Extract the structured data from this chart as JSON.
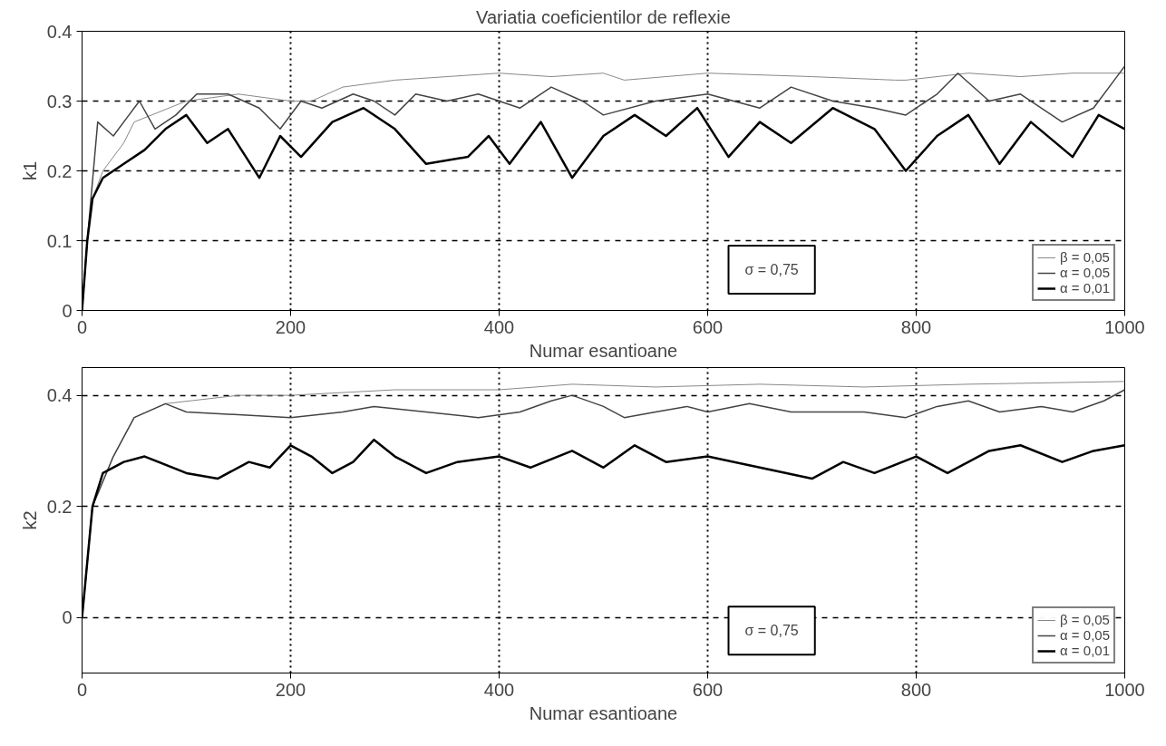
{
  "chart_data": [
    {
      "type": "line",
      "title": "Variatia coeficientilor de reflexie",
      "xlabel": "Numar esantioane",
      "ylabel": "k1",
      "xlim": [
        0,
        1000
      ],
      "xticks": [
        0,
        200,
        400,
        600,
        800,
        1000
      ],
      "ylim": [
        0,
        0.4
      ],
      "yticks": [
        0,
        0.1,
        0.2,
        0.3,
        0.4
      ],
      "grid": true,
      "legend": "bottom right",
      "annotations": [
        "σ = 0,75"
      ],
      "series": [
        {
          "name": "β = 0,05",
          "color": "#888888",
          "x": [
            0,
            5,
            10,
            20,
            40,
            50,
            100,
            150,
            200,
            220,
            250,
            300,
            350,
            400,
            450,
            500,
            520,
            600,
            700,
            780,
            790,
            850,
            900,
            950,
            1000
          ],
          "values": [
            0,
            0.1,
            0.16,
            0.2,
            0.24,
            0.27,
            0.3,
            0.31,
            0.3,
            0.3,
            0.32,
            0.33,
            0.335,
            0.34,
            0.335,
            0.34,
            0.33,
            0.34,
            0.335,
            0.33,
            0.33,
            0.34,
            0.335,
            0.34,
            0.34
          ]
        },
        {
          "name": "α = 0,05",
          "color": "#444444",
          "x": [
            0,
            5,
            15,
            30,
            45,
            55,
            70,
            90,
            110,
            140,
            170,
            190,
            210,
            230,
            260,
            280,
            300,
            320,
            350,
            380,
            420,
            450,
            480,
            500,
            550,
            600,
            650,
            680,
            720,
            760,
            790,
            820,
            840,
            870,
            900,
            940,
            970,
            990,
            1000
          ],
          "values": [
            0,
            0.1,
            0.27,
            0.25,
            0.28,
            0.3,
            0.26,
            0.28,
            0.31,
            0.31,
            0.29,
            0.26,
            0.3,
            0.29,
            0.31,
            0.3,
            0.28,
            0.31,
            0.3,
            0.31,
            0.29,
            0.32,
            0.3,
            0.28,
            0.3,
            0.31,
            0.29,
            0.32,
            0.3,
            0.29,
            0.28,
            0.31,
            0.34,
            0.3,
            0.31,
            0.27,
            0.29,
            0.33,
            0.35
          ]
        },
        {
          "name": "α = 0,01",
          "color": "#000000",
          "x": [
            0,
            5,
            10,
            20,
            40,
            60,
            80,
            100,
            120,
            140,
            170,
            190,
            210,
            240,
            270,
            300,
            330,
            370,
            390,
            410,
            440,
            470,
            500,
            530,
            560,
            590,
            620,
            650,
            680,
            720,
            760,
            790,
            820,
            850,
            880,
            910,
            950,
            975,
            1000
          ],
          "values": [
            0,
            0.1,
            0.16,
            0.19,
            0.21,
            0.23,
            0.26,
            0.28,
            0.24,
            0.26,
            0.19,
            0.25,
            0.22,
            0.27,
            0.29,
            0.26,
            0.21,
            0.22,
            0.25,
            0.21,
            0.27,
            0.19,
            0.25,
            0.28,
            0.25,
            0.29,
            0.22,
            0.27,
            0.24,
            0.29,
            0.26,
            0.2,
            0.25,
            0.28,
            0.21,
            0.27,
            0.22,
            0.28,
            0.26
          ]
        }
      ]
    },
    {
      "type": "line",
      "xlabel": "Numar esantioane",
      "ylabel": "k2",
      "xlim": [
        0,
        1000
      ],
      "xticks": [
        0,
        200,
        400,
        600,
        800,
        1000
      ],
      "ylim": [
        -0.1,
        0.45
      ],
      "yticks": [
        0,
        0.2,
        0.4
      ],
      "grid": true,
      "legend": "bottom right",
      "annotations": [
        "σ = 0,75"
      ],
      "series": [
        {
          "name": "β = 0,05",
          "color": "#888888",
          "x": [
            0,
            10,
            30,
            50,
            80,
            150,
            200,
            300,
            400,
            470,
            550,
            650,
            750,
            850,
            1000
          ],
          "values": [
            0,
            0.2,
            0.29,
            0.36,
            0.385,
            0.4,
            0.4,
            0.41,
            0.41,
            0.42,
            0.415,
            0.42,
            0.415,
            0.42,
            0.425
          ]
        },
        {
          "name": "α = 0,05",
          "color": "#444444",
          "x": [
            0,
            10,
            30,
            50,
            80,
            100,
            150,
            200,
            250,
            280,
            330,
            380,
            420,
            450,
            470,
            500,
            520,
            550,
            580,
            600,
            640,
            680,
            750,
            790,
            820,
            850,
            880,
            920,
            950,
            980,
            1000
          ],
          "values": [
            0,
            0.2,
            0.29,
            0.36,
            0.385,
            0.37,
            0.365,
            0.36,
            0.37,
            0.38,
            0.37,
            0.36,
            0.37,
            0.39,
            0.4,
            0.38,
            0.36,
            0.37,
            0.38,
            0.37,
            0.385,
            0.37,
            0.37,
            0.36,
            0.38,
            0.39,
            0.37,
            0.38,
            0.37,
            0.39,
            0.41
          ]
        },
        {
          "name": "α = 0,01",
          "color": "#000000",
          "x": [
            0,
            10,
            20,
            40,
            60,
            100,
            130,
            160,
            180,
            200,
            220,
            240,
            260,
            280,
            300,
            330,
            360,
            400,
            430,
            470,
            500,
            530,
            560,
            600,
            650,
            700,
            730,
            760,
            800,
            830,
            870,
            900,
            940,
            970,
            1000
          ],
          "values": [
            0,
            0.2,
            0.26,
            0.28,
            0.29,
            0.26,
            0.25,
            0.28,
            0.27,
            0.31,
            0.29,
            0.26,
            0.28,
            0.32,
            0.29,
            0.26,
            0.28,
            0.29,
            0.27,
            0.3,
            0.27,
            0.31,
            0.28,
            0.29,
            0.27,
            0.25,
            0.28,
            0.26,
            0.29,
            0.26,
            0.3,
            0.31,
            0.28,
            0.3,
            0.31
          ]
        }
      ]
    }
  ]
}
